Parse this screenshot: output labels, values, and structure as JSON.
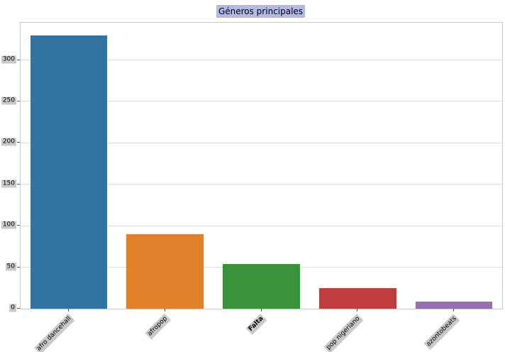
{
  "chart_data": {
    "type": "bar",
    "title": "Géneros principales",
    "categories": [
      "afro dancehall",
      "afropop",
      "Falta",
      "pop nigeriano",
      "azontobeats"
    ],
    "values": [
      330,
      90,
      54,
      25,
      9
    ],
    "colors": [
      "#3274A1",
      "#E1812C",
      "#3A923A",
      "#C03D3E",
      "#9372B2"
    ],
    "bold_categories": [
      "Falta"
    ],
    "xlabel": "",
    "ylabel": "",
    "yticks": [
      0,
      50,
      100,
      150,
      200,
      250,
      300
    ],
    "ylim": [
      0,
      345
    ],
    "grid": true,
    "legend": false,
    "styles": {
      "title_highlight": "#b7b7e6",
      "tick_highlight": "#c9c9c9",
      "grid_color": "#dcdcdc",
      "spine_color": "#c9c9c9",
      "background": "#ffffff"
    }
  }
}
